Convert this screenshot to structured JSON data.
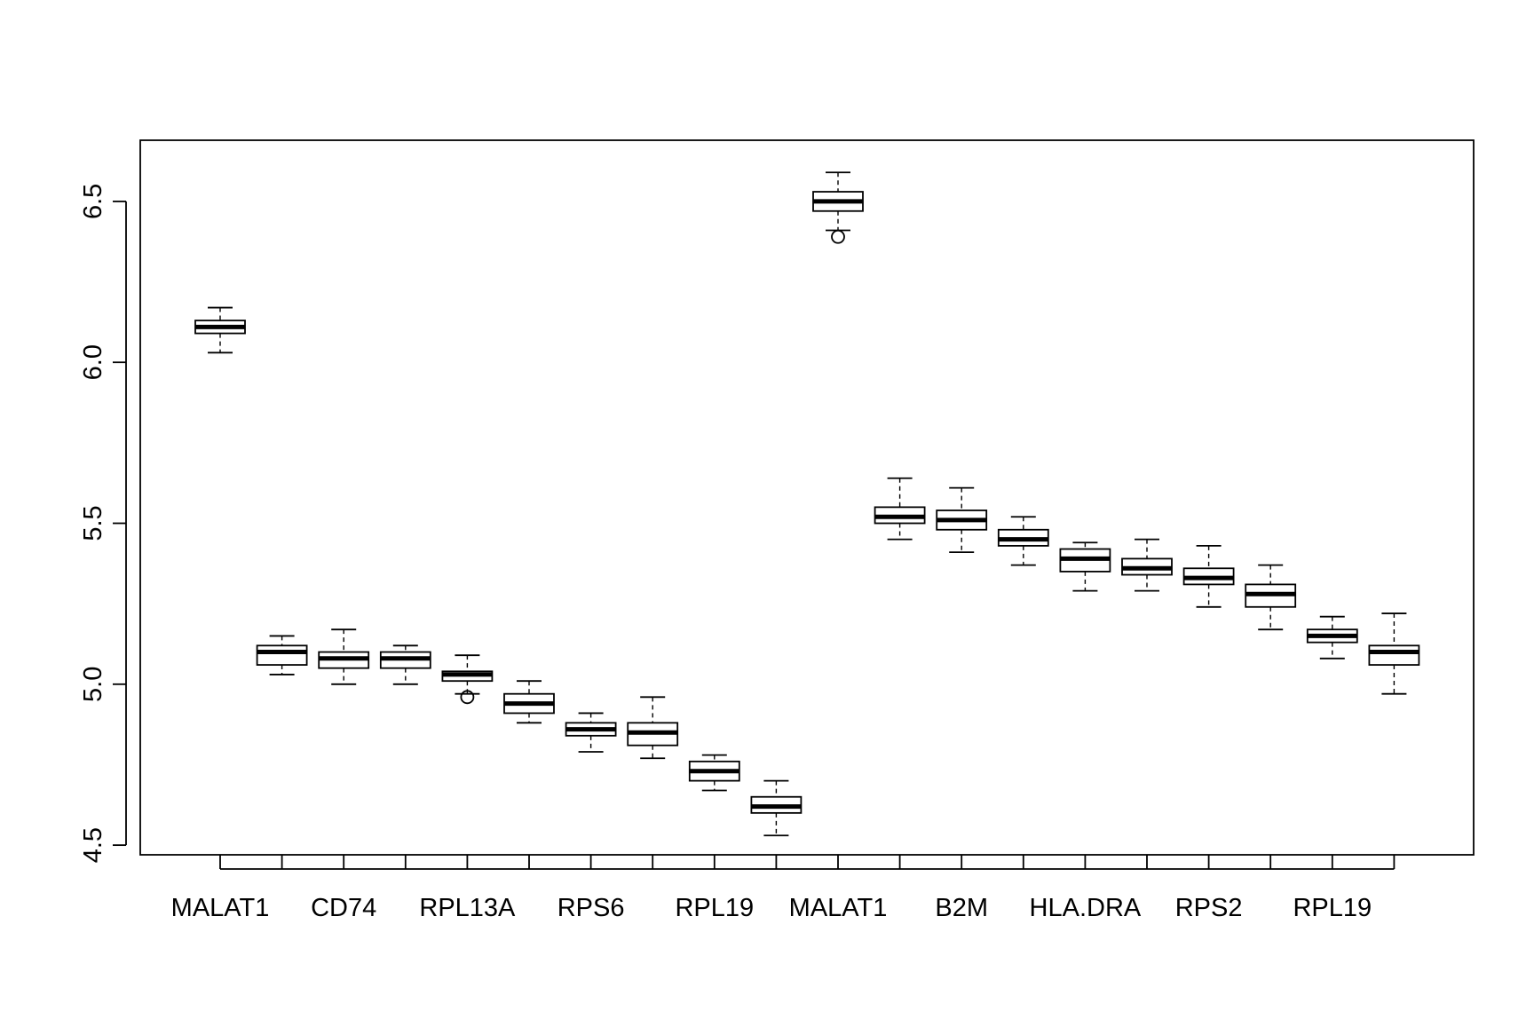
{
  "chart_data": {
    "type": "boxplot",
    "title": "",
    "xlabel": "",
    "ylabel": "",
    "ylim": [
      4.47,
      6.69
    ],
    "yticks": [
      "4.5",
      "5.0",
      "5.5",
      "6.0",
      "6.5"
    ],
    "ytick_values": [
      4.5,
      5.0,
      5.5,
      6.0,
      6.5
    ],
    "grid": false,
    "legend": "none",
    "xtick_labels": [
      "MALAT1",
      "",
      "CD74",
      "",
      "RPL13A",
      "",
      "RPS6",
      "",
      "RPL19",
      "",
      "MALAT1",
      "",
      "B2M",
      "",
      "HLA.DRA",
      "",
      "RPS2",
      "",
      "RPL19",
      ""
    ],
    "boxes": [
      {
        "min": 6.03,
        "q1": 6.09,
        "median": 6.11,
        "q3": 6.13,
        "max": 6.17,
        "outliers": []
      },
      {
        "min": 5.03,
        "q1": 5.06,
        "median": 5.1,
        "q3": 5.12,
        "max": 5.15,
        "outliers": []
      },
      {
        "min": 5.0,
        "q1": 5.05,
        "median": 5.08,
        "q3": 5.1,
        "max": 5.17,
        "outliers": []
      },
      {
        "min": 5.0,
        "q1": 5.05,
        "median": 5.08,
        "q3": 5.1,
        "max": 5.12,
        "outliers": []
      },
      {
        "min": 4.97,
        "q1": 5.01,
        "median": 5.03,
        "q3": 5.04,
        "max": 5.09,
        "outliers": [
          4.96
        ]
      },
      {
        "min": 4.88,
        "q1": 4.91,
        "median": 4.94,
        "q3": 4.97,
        "max": 5.01,
        "outliers": []
      },
      {
        "min": 4.79,
        "q1": 4.84,
        "median": 4.86,
        "q3": 4.88,
        "max": 4.91,
        "outliers": []
      },
      {
        "min": 4.77,
        "q1": 4.81,
        "median": 4.85,
        "q3": 4.88,
        "max": 4.96,
        "outliers": []
      },
      {
        "min": 4.67,
        "q1": 4.7,
        "median": 4.73,
        "q3": 4.76,
        "max": 4.78,
        "outliers": []
      },
      {
        "min": 4.53,
        "q1": 4.6,
        "median": 4.62,
        "q3": 4.65,
        "max": 4.7,
        "outliers": []
      },
      {
        "min": 6.41,
        "q1": 6.47,
        "median": 6.5,
        "q3": 6.53,
        "max": 6.59,
        "outliers": [
          6.39
        ]
      },
      {
        "min": 5.45,
        "q1": 5.5,
        "median": 5.52,
        "q3": 5.55,
        "max": 5.64,
        "outliers": []
      },
      {
        "min": 5.41,
        "q1": 5.48,
        "median": 5.51,
        "q3": 5.54,
        "max": 5.61,
        "outliers": []
      },
      {
        "min": 5.37,
        "q1": 5.43,
        "median": 5.45,
        "q3": 5.48,
        "max": 5.52,
        "outliers": []
      },
      {
        "min": 5.29,
        "q1": 5.35,
        "median": 5.39,
        "q3": 5.42,
        "max": 5.44,
        "outliers": []
      },
      {
        "min": 5.29,
        "q1": 5.34,
        "median": 5.36,
        "q3": 5.39,
        "max": 5.45,
        "outliers": []
      },
      {
        "min": 5.24,
        "q1": 5.31,
        "median": 5.33,
        "q3": 5.36,
        "max": 5.43,
        "outliers": []
      },
      {
        "min": 5.17,
        "q1": 5.24,
        "median": 5.28,
        "q3": 5.31,
        "max": 5.37,
        "outliers": []
      },
      {
        "min": 5.08,
        "q1": 5.13,
        "median": 5.15,
        "q3": 5.17,
        "max": 5.21,
        "outliers": []
      },
      {
        "min": 4.97,
        "q1": 5.06,
        "median": 5.1,
        "q3": 5.12,
        "max": 5.22,
        "outliers": []
      }
    ]
  }
}
